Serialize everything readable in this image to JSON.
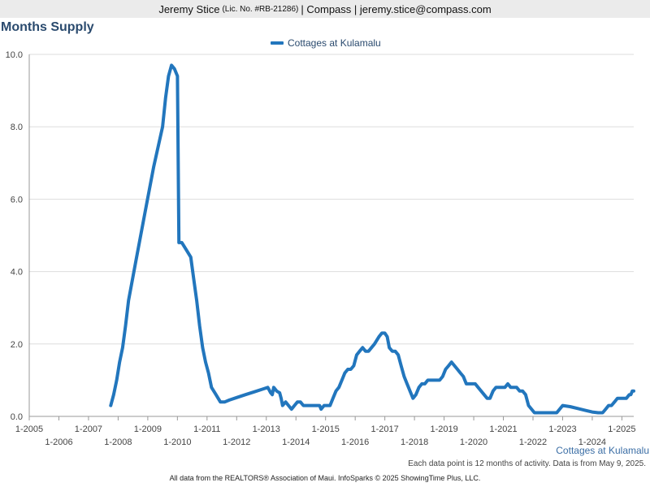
{
  "header": {
    "name": "Jeremy Stice",
    "license": "(Lic. No. #RB-21286)",
    "rest": "| Compass | jeremy.stice@compass.com"
  },
  "area_label": "Cottages at Kulamalu",
  "note": "Each data point is 12 months of activity. Data is from May 9, 2025.",
  "footer": "All data from the REALTORS® Association of Maui. InfoSparks © 2025 ShowingTime Plus, LLC.",
  "colors": {
    "series": "#2276bd",
    "title": "#2a4a6e",
    "grid": "#dddddd"
  },
  "chart_data": {
    "type": "line",
    "title": "Months Supply",
    "xlabel": "",
    "ylabel": "",
    "ylim": [
      0,
      10
    ],
    "xlim": [
      2005,
      2025.4
    ],
    "y_ticks": [
      "0.0",
      "2.0",
      "4.0",
      "6.0",
      "8.0",
      "10.0"
    ],
    "x_ticks": [
      "1-2005",
      "1-2006",
      "1-2007",
      "1-2008",
      "1-2009",
      "1-2010",
      "1-2011",
      "1-2012",
      "1-2013",
      "1-2014",
      "1-2015",
      "1-2016",
      "1-2017",
      "1-2018",
      "1-2019",
      "1-2020",
      "1-2021",
      "1-2022",
      "1-2023",
      "1-2024",
      "1-2025"
    ],
    "grid": "horizontal",
    "legend_position": "top-center",
    "series": [
      {
        "name": "Cottages at Kulamalu",
        "points": [
          [
            2007.75,
            0.3
          ],
          [
            2007.85,
            0.6
          ],
          [
            2007.95,
            1.0
          ],
          [
            2008.05,
            1.5
          ],
          [
            2008.15,
            1.9
          ],
          [
            2008.25,
            2.5
          ],
          [
            2008.35,
            3.2
          ],
          [
            2008.6,
            4.3
          ],
          [
            2008.9,
            5.6
          ],
          [
            2009.2,
            6.9
          ],
          [
            2009.5,
            8.0
          ],
          [
            2009.6,
            8.8
          ],
          [
            2009.7,
            9.4
          ],
          [
            2009.8,
            9.7
          ],
          [
            2009.9,
            9.6
          ],
          [
            2010.0,
            9.4
          ],
          [
            2010.05,
            4.8
          ],
          [
            2010.15,
            4.8
          ],
          [
            2010.3,
            4.6
          ],
          [
            2010.45,
            4.4
          ],
          [
            2010.55,
            3.8
          ],
          [
            2010.65,
            3.2
          ],
          [
            2010.75,
            2.5
          ],
          [
            2010.85,
            1.9
          ],
          [
            2010.95,
            1.5
          ],
          [
            2011.05,
            1.2
          ],
          [
            2011.15,
            0.8
          ],
          [
            2011.3,
            0.6
          ],
          [
            2011.45,
            0.4
          ],
          [
            2011.6,
            0.4
          ],
          [
            2011.75,
            0.45
          ],
          [
            2012.0,
            0.52
          ],
          [
            2012.3,
            0.6
          ],
          [
            2012.6,
            0.68
          ],
          [
            2012.9,
            0.76
          ],
          [
            2013.05,
            0.8
          ],
          [
            2013.15,
            0.65
          ],
          [
            2013.2,
            0.6
          ],
          [
            2013.25,
            0.8
          ],
          [
            2013.35,
            0.7
          ],
          [
            2013.45,
            0.65
          ],
          [
            2013.5,
            0.5
          ],
          [
            2013.55,
            0.3
          ],
          [
            2013.65,
            0.4
          ],
          [
            2013.75,
            0.3
          ],
          [
            2013.85,
            0.2
          ],
          [
            2013.95,
            0.3
          ],
          [
            2014.05,
            0.4
          ],
          [
            2014.15,
            0.4
          ],
          [
            2014.25,
            0.3
          ],
          [
            2014.45,
            0.3
          ],
          [
            2014.65,
            0.3
          ],
          [
            2014.8,
            0.3
          ],
          [
            2014.85,
            0.2
          ],
          [
            2014.95,
            0.3
          ],
          [
            2015.05,
            0.3
          ],
          [
            2015.15,
            0.3
          ],
          [
            2015.25,
            0.5
          ],
          [
            2015.35,
            0.7
          ],
          [
            2015.45,
            0.8
          ],
          [
            2015.55,
            1.0
          ],
          [
            2015.65,
            1.2
          ],
          [
            2015.75,
            1.3
          ],
          [
            2015.85,
            1.3
          ],
          [
            2015.95,
            1.4
          ],
          [
            2016.05,
            1.7
          ],
          [
            2016.15,
            1.8
          ],
          [
            2016.25,
            1.9
          ],
          [
            2016.35,
            1.8
          ],
          [
            2016.45,
            1.8
          ],
          [
            2016.55,
            1.9
          ],
          [
            2016.65,
            2.0
          ],
          [
            2016.8,
            2.2
          ],
          [
            2016.9,
            2.3
          ],
          [
            2017.0,
            2.3
          ],
          [
            2017.08,
            2.2
          ],
          [
            2017.15,
            1.9
          ],
          [
            2017.25,
            1.8
          ],
          [
            2017.35,
            1.8
          ],
          [
            2017.45,
            1.7
          ],
          [
            2017.55,
            1.4
          ],
          [
            2017.65,
            1.1
          ],
          [
            2017.75,
            0.9
          ],
          [
            2017.85,
            0.7
          ],
          [
            2017.95,
            0.5
          ],
          [
            2018.05,
            0.6
          ],
          [
            2018.15,
            0.8
          ],
          [
            2018.25,
            0.9
          ],
          [
            2018.35,
            0.9
          ],
          [
            2018.45,
            1.0
          ],
          [
            2018.55,
            1.0
          ],
          [
            2018.65,
            1.0
          ],
          [
            2018.75,
            1.0
          ],
          [
            2018.85,
            1.0
          ],
          [
            2018.95,
            1.1
          ],
          [
            2019.05,
            1.3
          ],
          [
            2019.15,
            1.4
          ],
          [
            2019.25,
            1.5
          ],
          [
            2019.35,
            1.4
          ],
          [
            2019.45,
            1.3
          ],
          [
            2019.55,
            1.2
          ],
          [
            2019.65,
            1.1
          ],
          [
            2019.75,
            0.9
          ],
          [
            2019.85,
            0.9
          ],
          [
            2019.95,
            0.9
          ],
          [
            2020.05,
            0.9
          ],
          [
            2020.15,
            0.8
          ],
          [
            2020.25,
            0.7
          ],
          [
            2020.35,
            0.6
          ],
          [
            2020.45,
            0.5
          ],
          [
            2020.55,
            0.5
          ],
          [
            2020.65,
            0.7
          ],
          [
            2020.75,
            0.8
          ],
          [
            2020.85,
            0.8
          ],
          [
            2020.95,
            0.8
          ],
          [
            2021.05,
            0.8
          ],
          [
            2021.15,
            0.9
          ],
          [
            2021.25,
            0.8
          ],
          [
            2021.35,
            0.8
          ],
          [
            2021.45,
            0.8
          ],
          [
            2021.55,
            0.7
          ],
          [
            2021.65,
            0.7
          ],
          [
            2021.75,
            0.6
          ],
          [
            2021.85,
            0.3
          ],
          [
            2021.95,
            0.2
          ],
          [
            2022.05,
            0.1
          ],
          [
            2022.3,
            0.1
          ],
          [
            2022.55,
            0.1
          ],
          [
            2022.8,
            0.1
          ],
          [
            2022.9,
            0.2
          ],
          [
            2023.0,
            0.3
          ],
          [
            2023.25,
            0.27
          ],
          [
            2023.5,
            0.22
          ],
          [
            2023.75,
            0.17
          ],
          [
            2024.0,
            0.12
          ],
          [
            2024.2,
            0.1
          ],
          [
            2024.35,
            0.1
          ],
          [
            2024.45,
            0.2
          ],
          [
            2024.55,
            0.3
          ],
          [
            2024.65,
            0.3
          ],
          [
            2024.75,
            0.4
          ],
          [
            2024.85,
            0.5
          ],
          [
            2024.95,
            0.5
          ],
          [
            2025.05,
            0.5
          ],
          [
            2025.15,
            0.5
          ],
          [
            2025.25,
            0.6
          ],
          [
            2025.3,
            0.6
          ],
          [
            2025.35,
            0.7
          ],
          [
            2025.4,
            0.7
          ]
        ]
      }
    ]
  }
}
